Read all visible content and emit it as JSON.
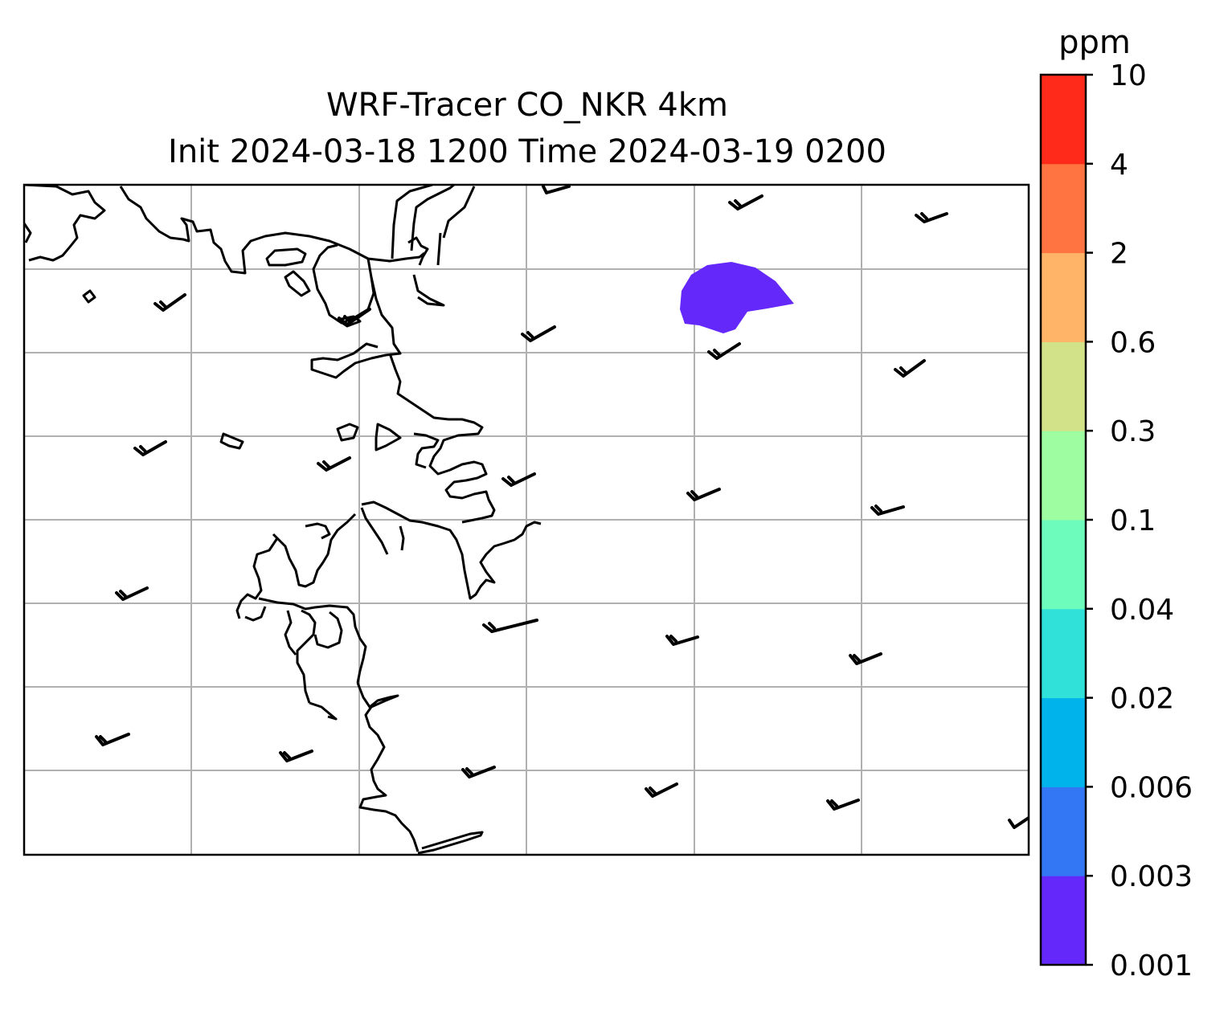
{
  "title": {
    "line1": "WRF-Tracer CO_NKR 4km",
    "line2": "Init 2024-03-18 1200 Time 2024-03-19 0200"
  },
  "colorbar": {
    "unit": "ppm",
    "levels": [
      "0.001",
      "0.003",
      "0.006",
      "0.02",
      "0.04",
      "0.1",
      "0.3",
      "0.6",
      "2",
      "4",
      "10"
    ],
    "colors": [
      "#6428FA",
      "#3477F5",
      "#00B4EB",
      "#2FE1D8",
      "#6DFCBC",
      "#9EFDA0",
      "#D2E289",
      "#FFB468",
      "#FF7441",
      "#FF2A1A"
    ]
  },
  "map": {
    "gridlines": true,
    "coastline_color": "#000000",
    "grid_color": "#b0b0b0",
    "plume": {
      "color": "#6428FA",
      "value_band": "0.001-0.003"
    },
    "wind_barbs": "light westerly-southwesterly winds across domain"
  }
}
